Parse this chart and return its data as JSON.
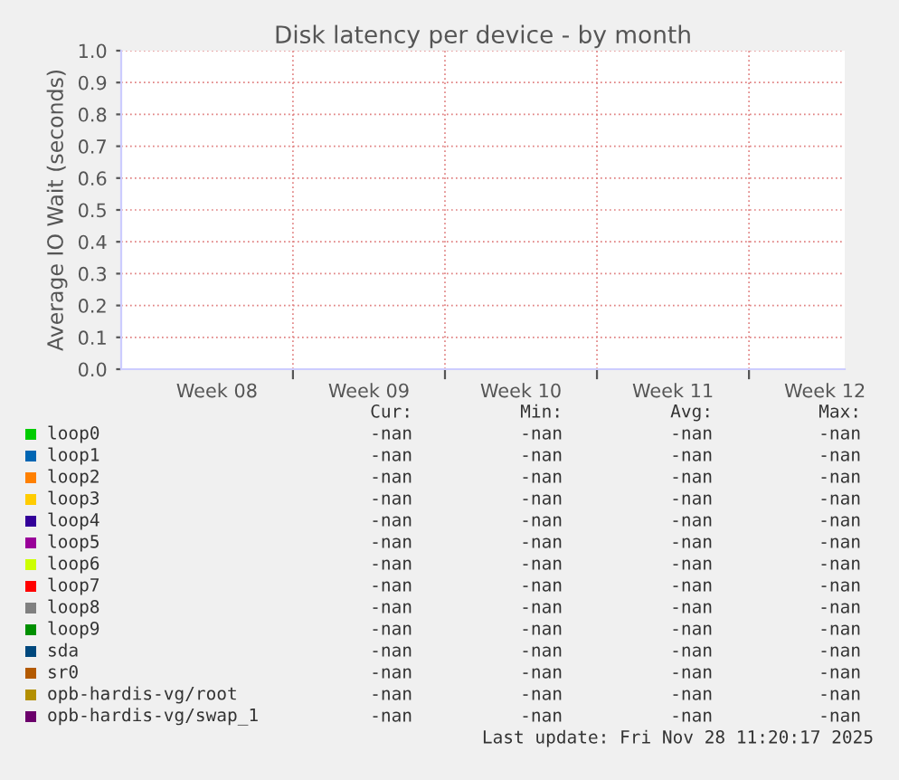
{
  "chart_data": {
    "type": "line",
    "title": "Disk latency per device - by month",
    "ylabel": "Average IO Wait (seconds)",
    "categories": [
      "Week 08",
      "Week 09",
      "Week 10",
      "Week 11",
      "Week 12"
    ],
    "ylim": [
      0,
      1.0
    ],
    "yticks": [
      {
        "value": 0,
        "label": "0.0"
      },
      {
        "value": 0.1,
        "label": "0.1"
      },
      {
        "value": 0.2,
        "label": "0.2"
      },
      {
        "value": 0.3,
        "label": "0.3"
      },
      {
        "value": 0.4,
        "label": "0.4"
      },
      {
        "value": 0.5,
        "label": "0.5"
      },
      {
        "value": 0.6,
        "label": "0.6"
      },
      {
        "value": 0.7,
        "label": "0.7"
      },
      {
        "value": 0.8,
        "label": "0.8"
      },
      {
        "value": 0.9,
        "label": "0.9"
      },
      {
        "value": 1.0,
        "label": "1.0"
      }
    ],
    "grid": true,
    "legend": "bottom",
    "annotations": [
      "Cur:",
      "Min:",
      "Avg:",
      "Max:",
      "Last update: Fri Nov 28 11:20:17 2025"
    ],
    "series": [
      {
        "name": "loop0",
        "color": "#00cc00",
        "values": [
          null,
          null,
          null,
          null,
          null
        ],
        "value_labels": [
          "-nan",
          "-nan",
          "-nan",
          "-nan",
          null
        ]
      },
      {
        "name": "loop1",
        "color": "#0066b3",
        "values": [
          null,
          null,
          null,
          null,
          null
        ],
        "value_labels": [
          "-nan",
          "-nan",
          "-nan",
          "-nan",
          null
        ]
      },
      {
        "name": "loop2",
        "color": "#ff8000",
        "values": [
          null,
          null,
          null,
          null,
          null
        ],
        "value_labels": [
          "-nan",
          "-nan",
          "-nan",
          "-nan",
          null
        ]
      },
      {
        "name": "loop3",
        "color": "#ffcc00",
        "values": [
          null,
          null,
          null,
          null,
          null
        ],
        "value_labels": [
          "-nan",
          "-nan",
          "-nan",
          "-nan",
          null
        ]
      },
      {
        "name": "loop4",
        "color": "#330099",
        "values": [
          null,
          null,
          null,
          null,
          null
        ],
        "value_labels": [
          "-nan",
          "-nan",
          "-nan",
          "-nan",
          null
        ]
      },
      {
        "name": "loop5",
        "color": "#990099",
        "values": [
          null,
          null,
          null,
          null,
          null
        ],
        "value_labels": [
          "-nan",
          "-nan",
          "-nan",
          "-nan",
          null
        ]
      },
      {
        "name": "loop6",
        "color": "#ccff00",
        "values": [
          null,
          null,
          null,
          null,
          null
        ],
        "value_labels": [
          "-nan",
          "-nan",
          "-nan",
          "-nan",
          null
        ]
      },
      {
        "name": "loop7",
        "color": "#ff0000",
        "values": [
          null,
          null,
          null,
          null,
          null
        ],
        "value_labels": [
          "-nan",
          "-nan",
          "-nan",
          "-nan",
          null
        ]
      },
      {
        "name": "loop8",
        "color": "#808080",
        "values": [
          null,
          null,
          null,
          null,
          null
        ],
        "value_labels": [
          "-nan",
          "-nan",
          "-nan",
          "-nan",
          null
        ]
      },
      {
        "name": "loop9",
        "color": "#008f00",
        "values": [
          null,
          null,
          null,
          null,
          null
        ],
        "value_labels": [
          "-nan",
          "-nan",
          "-nan",
          "-nan",
          null
        ]
      },
      {
        "name": "sda",
        "color": "#00487d",
        "values": [
          null,
          null,
          null,
          null,
          null
        ],
        "value_labels": [
          "-nan",
          "-nan",
          "-nan",
          "-nan",
          null
        ]
      },
      {
        "name": "sr0",
        "color": "#b35a00",
        "values": [
          null,
          null,
          null,
          null,
          null
        ],
        "value_labels": [
          "-nan",
          "-nan",
          "-nan",
          "-nan",
          null
        ]
      },
      {
        "name": "opb-hardis-vg/root",
        "color": "#b38f00",
        "values": [
          null,
          null,
          null,
          null,
          null
        ],
        "value_labels": [
          "-nan",
          "-nan",
          "-nan",
          "-nan",
          null
        ]
      },
      {
        "name": "opb-hardis-vg/swap_1",
        "color": "#6b006b",
        "values": [
          null,
          null,
          null,
          null,
          null
        ],
        "value_labels": [
          "-nan",
          "-nan",
          "-nan",
          "-nan",
          null
        ]
      }
    ]
  }
}
